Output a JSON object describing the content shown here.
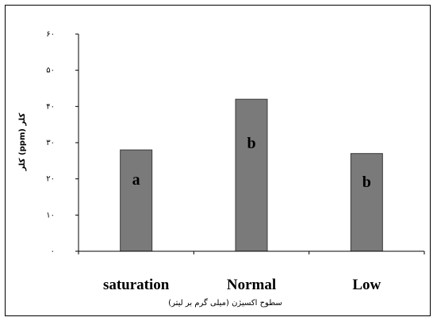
{
  "chart_data": {
    "type": "bar",
    "categories": [
      "saturation",
      "Normal",
      "Low"
    ],
    "values": [
      28,
      42,
      27
    ],
    "bar_labels": [
      "a",
      "b",
      "b"
    ],
    "ylim": [
      0,
      50
    ],
    "yticks": [
      0,
      10,
      20,
      30,
      40,
      50,
      60
    ],
    "ytick_labels": [
      "۰",
      "۱۰",
      "۲۰",
      "۳۰",
      "۴۰",
      "۵۰",
      "۶۰"
    ],
    "ylabel": "کلر (ppm) کلر",
    "xlabel": "سطوح اکسیژن (میلی گرم بر لیتر)",
    "grid": false,
    "colors": {
      "bar": "#7a7a7a",
      "bar_edge": "#3a3a3a",
      "axis": "#000000"
    }
  }
}
